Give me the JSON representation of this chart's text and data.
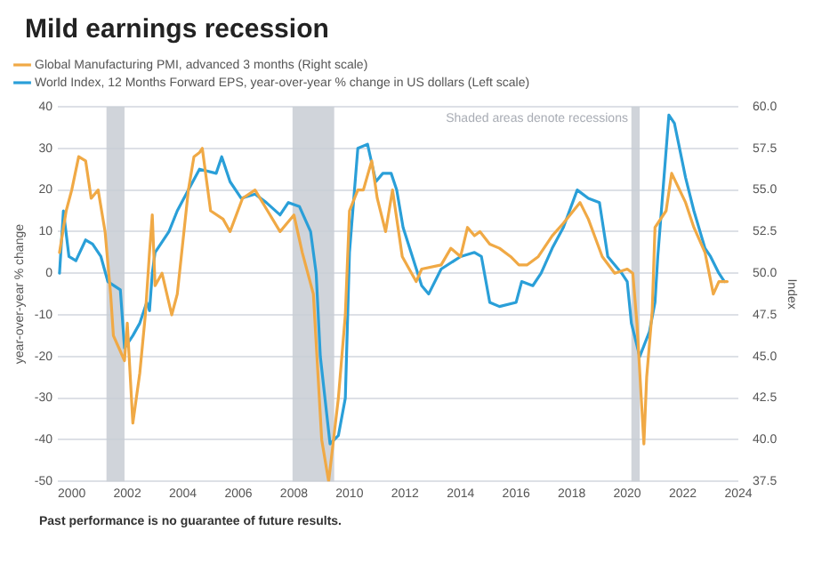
{
  "chart_data": {
    "type": "line",
    "title": "Mild earnings recession",
    "ylabel": "year-over-year % change",
    "y2label": "Index",
    "annotations": [
      "Shaded areas denote recessions",
      "Past performance is no guarantee of future results."
    ],
    "series": [
      {
        "name": "Global Manufacturing PMI, advanced 3 months (Right scale)",
        "color": "#f0a945",
        "axis": "y2",
        "x": [
          1999.56,
          1999.8,
          2000.0,
          2000.25,
          2000.5,
          2000.7,
          2000.95,
          2001.2,
          2001.4,
          2001.5,
          2001.9,
          2002.0,
          2002.2,
          2002.45,
          2002.65,
          2002.8,
          2002.9,
          2003.0,
          2003.25,
          2003.6,
          2003.8,
          2004.2,
          2004.4,
          2004.6,
          2004.7,
          2005.0,
          2005.45,
          2005.7,
          2006.15,
          2006.6,
          2007.05,
          2007.5,
          2008.0,
          2008.3,
          2008.7,
          2009.0,
          2009.25,
          2009.6,
          2009.85,
          2010.0,
          2010.3,
          2010.5,
          2010.8,
          2011.0,
          2011.3,
          2011.55,
          2011.9,
          2012.4,
          2012.6,
          2013.3,
          2013.65,
          2014.0,
          2014.25,
          2014.5,
          2014.7,
          2015.05,
          2015.4,
          2015.8,
          2016.1,
          2016.4,
          2016.8,
          2017.3,
          2017.7,
          2018.3,
          2018.6,
          2019.1,
          2019.55,
          2020.0,
          2020.2,
          2020.35,
          2020.6,
          2020.7,
          2020.9,
          2021.0,
          2021.4,
          2021.6,
          2022.1,
          2022.4,
          2022.8,
          2023.1,
          2023.3,
          2023.6
        ],
        "values": [
          51.25,
          53.75,
          55,
          57,
          56.75,
          54.5,
          55,
          52.5,
          48.75,
          46.25,
          44.75,
          47,
          41,
          44,
          47.5,
          51.25,
          53.5,
          49.25,
          50,
          47.5,
          48.75,
          55,
          57,
          57.25,
          57.5,
          53.75,
          53.25,
          52.5,
          54.5,
          55,
          53.75,
          52.5,
          53.5,
          51.25,
          48.75,
          40,
          37.5,
          42.5,
          47.5,
          53.75,
          55,
          55,
          56.75,
          54.5,
          52.5,
          55,
          51,
          49.5,
          50.25,
          50.5,
          51.5,
          51,
          52.75,
          52.25,
          52.5,
          51.75,
          51.5,
          51,
          50.5,
          50.5,
          51,
          52.25,
          53,
          54.25,
          53.25,
          51,
          50,
          50.25,
          50,
          47,
          39.75,
          43.75,
          47.75,
          52.75,
          53.75,
          56,
          54.25,
          52.75,
          51.25,
          48.75,
          49.5,
          49.5
        ]
      },
      {
        "name": "World Index, 12 Months Forward EPS, year-over-year % change in US dollars (Left scale)",
        "color": "#2a9fd8",
        "axis": "y",
        "x": [
          1999.56,
          1999.7,
          1999.9,
          2000.15,
          2000.5,
          2000.75,
          2001.05,
          2001.3,
          2001.75,
          2001.9,
          2002.2,
          2002.45,
          2002.7,
          2002.8,
          2002.9,
          2003.0,
          2003.5,
          2003.8,
          2004.2,
          2004.6,
          2005.2,
          2005.4,
          2005.7,
          2006.1,
          2006.6,
          2007.0,
          2007.5,
          2007.8,
          2008.2,
          2008.6,
          2008.8,
          2008.95,
          2009.3,
          2009.6,
          2009.85,
          2010.0,
          2010.3,
          2010.65,
          2010.95,
          2011.2,
          2011.5,
          2011.7,
          2011.93,
          2012.6,
          2012.85,
          2013.3,
          2014.0,
          2014.5,
          2014.75,
          2015.05,
          2015.4,
          2016.0,
          2016.2,
          2016.6,
          2016.9,
          2017.3,
          2017.7,
          2018.2,
          2018.6,
          2019.0,
          2019.3,
          2019.8,
          2020.0,
          2020.15,
          2020.45,
          2020.8,
          2021.0,
          2021.1,
          2021.5,
          2021.7,
          2022.1,
          2022.4,
          2022.8,
          2023.0,
          2023.3,
          2023.5
        ],
        "values": [
          0,
          15,
          4,
          3,
          8,
          7,
          4,
          -2,
          -4,
          -18,
          -15,
          -12,
          -7,
          -9,
          0,
          5,
          10,
          15,
          20,
          25,
          24,
          28,
          22,
          18,
          19,
          17,
          14,
          17,
          16,
          10,
          0,
          -20,
          -41,
          -39,
          -30,
          5,
          30,
          31,
          22,
          24,
          24,
          20,
          11,
          -3,
          -5,
          1,
          4,
          5,
          4,
          -7,
          -8,
          -7,
          -2,
          -3,
          0,
          6,
          11,
          20,
          18,
          17,
          4,
          0,
          -2,
          -12,
          -20,
          -14,
          -7,
          4,
          38,
          36,
          23,
          15,
          6,
          4,
          0,
          -2
        ]
      }
    ],
    "xlim": [
      1999.5,
      2024
    ],
    "xticks": [
      2000,
      2002,
      2004,
      2006,
      2008,
      2010,
      2012,
      2014,
      2016,
      2018,
      2020,
      2022,
      2024
    ],
    "ylim": [
      -50,
      40
    ],
    "yticks": [
      -50,
      -40,
      -30,
      -20,
      -10,
      0,
      10,
      20,
      30,
      40
    ],
    "y2lim": [
      37.5,
      60
    ],
    "y2ticks": [
      {
        "value": 37.5,
        "label": "37.5"
      },
      {
        "value": 40,
        "label": "40.0"
      },
      {
        "value": 42.5,
        "label": "42.5"
      },
      {
        "value": 45,
        "label": "45.0"
      },
      {
        "value": 47.5,
        "label": "47.5"
      },
      {
        "value": 50,
        "label": "50.0"
      },
      {
        "value": 52.5,
        "label": "52.5"
      },
      {
        "value": 55,
        "label": "55.0"
      },
      {
        "value": 57.5,
        "label": "57.5"
      },
      {
        "value": 60,
        "label": "60.0"
      }
    ],
    "bands": [
      {
        "axis": "x",
        "from": 2001.25,
        "to": 2001.9,
        "color": "#c8ccd4"
      },
      {
        "axis": "x",
        "from": 2007.95,
        "to": 2009.45,
        "color": "#c8ccd4"
      },
      {
        "axis": "x",
        "from": 2020.15,
        "to": 2020.45,
        "color": "#c8ccd4"
      }
    ],
    "grid": "y",
    "legend": "top left",
    "marker": "none",
    "line_style": "solid"
  }
}
